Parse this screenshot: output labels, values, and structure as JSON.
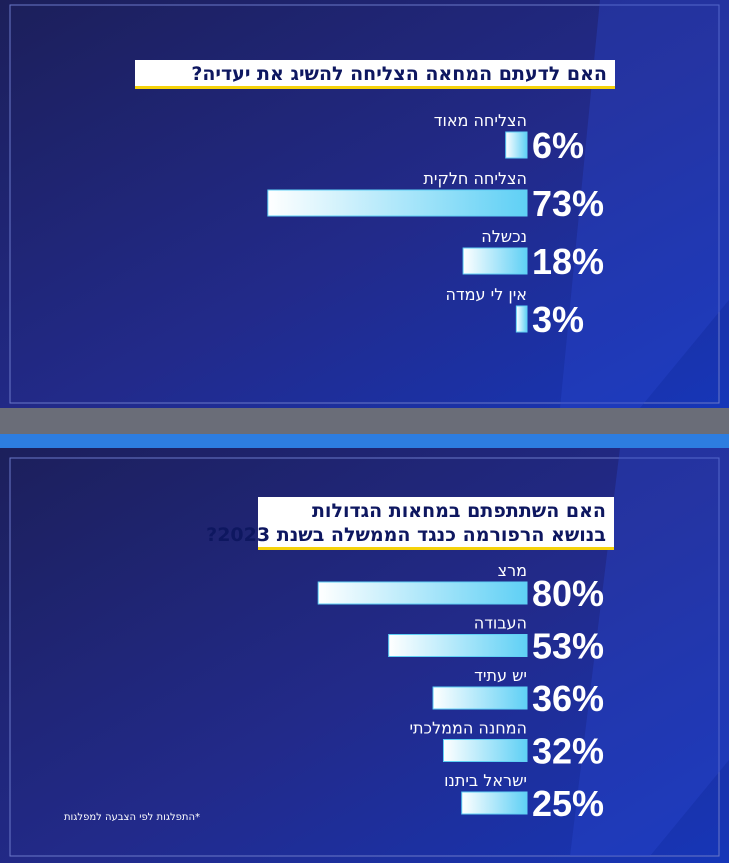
{
  "chart_data": [
    {
      "type": "bar",
      "orientation": "horizontal-rtl",
      "title": [
        "האם לדעתם המחאה הצליחה להשיג את יעדיה?"
      ],
      "categories": [
        "הצליחה מאוד",
        "הצליחה חלקית",
        "נכשלה",
        "אין לי עמדה"
      ],
      "values": [
        6,
        73,
        18,
        3
      ],
      "value_labels": [
        "6%",
        "73%",
        "18%",
        "3%"
      ],
      "color": "#5fd0f5",
      "xlim": [
        0,
        100
      ]
    },
    {
      "type": "bar",
      "orientation": "horizontal-rtl",
      "title": [
        "האם השתתפתם במחאות הגדולות",
        "בנושא הרפורמה כנגד הממשלה בשנת 2023?"
      ],
      "categories": [
        "מרצ",
        "העבודה",
        "יש עתיד",
        "המחנה הממלכתי",
        "ישראל ביתנו"
      ],
      "values": [
        80,
        53,
        36,
        32,
        25
      ],
      "value_labels": [
        "80%",
        "53%",
        "36%",
        "32%",
        "25%"
      ],
      "color": "#5fd0f5",
      "xlim": [
        0,
        100
      ],
      "note": "*התפלגות לפי הצבעה למפלגות"
    }
  ]
}
